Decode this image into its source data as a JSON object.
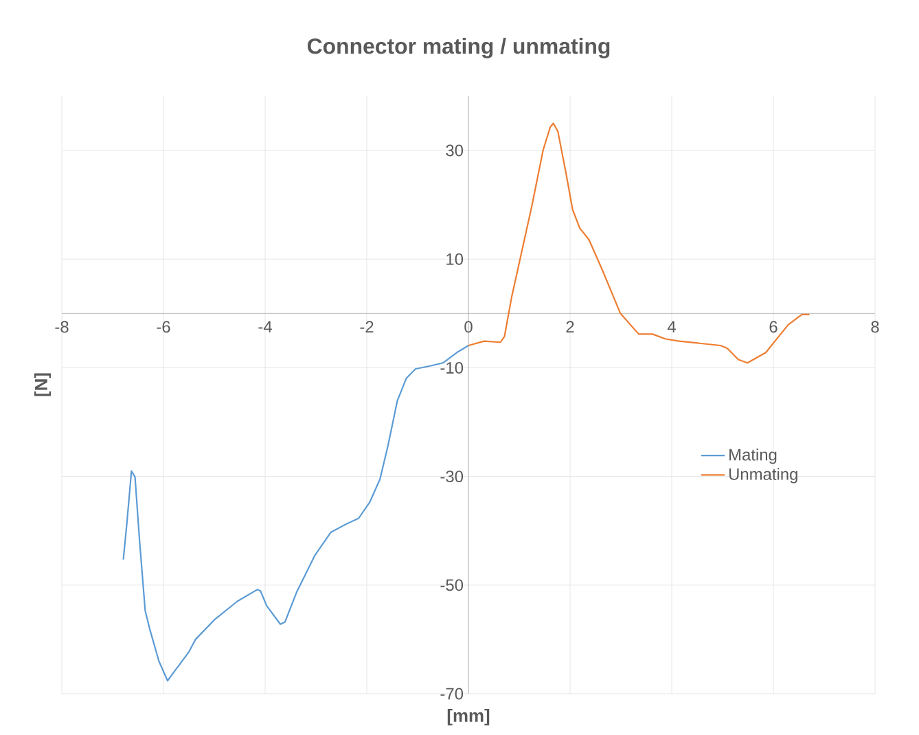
{
  "chart_data": {
    "type": "line",
    "title": "Connector mating / unmating",
    "xlabel": "[mm]",
    "ylabel": "[N]",
    "xlim": [
      -8,
      8
    ],
    "ylim": [
      -70,
      40
    ],
    "xticks": [
      -8,
      -6,
      -4,
      -2,
      0,
      2,
      4,
      6,
      8
    ],
    "yticks": [
      -70,
      -50,
      -30,
      -10,
      10,
      30
    ],
    "grid": true,
    "legend": "right",
    "marker": "none",
    "series": [
      {
        "name": "Mating",
        "color": "#5b9bd5",
        "x": [
          -6.79,
          -6.72,
          -6.63,
          -6.56,
          -6.47,
          -6.36,
          -6.27,
          -6.09,
          -5.92,
          -5.77,
          -5.5,
          -5.37,
          -5.0,
          -4.55,
          -4.15,
          -4.09,
          -3.97,
          -3.7,
          -3.61,
          -3.38,
          -3.02,
          -2.71,
          -2.39,
          -2.16,
          -1.94,
          -1.74,
          -1.58,
          -1.4,
          -1.22,
          -1.04,
          -0.77,
          -0.5,
          -0.23,
          0
        ],
        "values": [
          -45.3,
          -38.6,
          -29.0,
          -30.1,
          -41.9,
          -54.7,
          -58.1,
          -64.0,
          -67.6,
          -65.7,
          -62.3,
          -60.0,
          -56.4,
          -53.0,
          -50.8,
          -51.1,
          -53.8,
          -57.2,
          -56.8,
          -51.3,
          -44.5,
          -40.3,
          -38.7,
          -37.7,
          -34.7,
          -30.5,
          -24.2,
          -16.1,
          -11.9,
          -10.2,
          -9.7,
          -9.1,
          -7.2,
          -5.9
        ]
      },
      {
        "name": "Unmating",
        "color": "#ed7d31",
        "x": [
          0,
          0.31,
          0.63,
          0.71,
          0.85,
          1.03,
          1.25,
          1.47,
          1.61,
          1.67,
          1.76,
          1.92,
          2.05,
          2.19,
          2.37,
          2.63,
          2.99,
          3.35,
          3.62,
          3.88,
          4.15,
          4.96,
          5.09,
          5.31,
          5.49,
          5.85,
          6.29,
          6.56,
          6.71
        ],
        "values": [
          -5.9,
          -5.1,
          -5.3,
          -4.2,
          3.0,
          10.6,
          19.9,
          30.1,
          34.3,
          35.0,
          33.5,
          25.8,
          19.1,
          15.7,
          13.6,
          8.1,
          0,
          -3.8,
          -3.8,
          -4.7,
          -5.1,
          -5.9,
          -6.4,
          -8.5,
          -9.1,
          -7.2,
          -2.1,
          -0.2,
          -0.2
        ]
      }
    ]
  }
}
